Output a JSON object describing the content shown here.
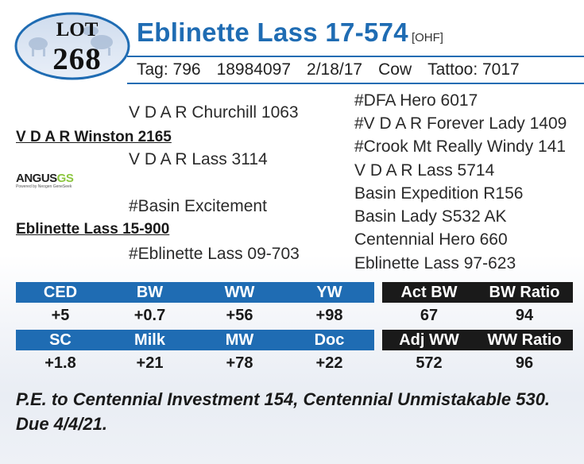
{
  "lot": {
    "label": "LOT",
    "number": "268"
  },
  "animal": {
    "name": "Eblinette Lass 17-574",
    "code": "[OHF]"
  },
  "info": {
    "tag": "Tag: 796",
    "reg": "18984097",
    "dob": "2/18/17",
    "sex": "Cow",
    "tattoo": "Tattoo: 7017"
  },
  "pedigree": {
    "sire": "V D A R Winston 2165",
    "sire_sire": "V D A R Churchill 1063",
    "sire_dam": "V D A R Lass 3114",
    "sire_sire_sire": "#DFA Hero 6017",
    "sire_sire_dam": "#V D A R Forever Lady 1409",
    "sire_dam_sire": "#Crook Mt Really Windy 141",
    "sire_dam_dam": "V D A R Lass 5714",
    "dam": "Eblinette Lass 15-900",
    "dam_sire": "#Basin Excitement",
    "dam_dam": "#Eblinette Lass 09-703",
    "dam_sire_sire": "Basin Expedition R156",
    "dam_sire_dam": "Basin Lady S532 AK",
    "dam_dam_sire": "Centennial Hero 660",
    "dam_dam_dam": "Eblinette Lass 97-623"
  },
  "logo": {
    "angus": "ANGUS",
    "gs": "GS",
    "powered": "Powered by Neogen GeneSeek"
  },
  "epd_row1": {
    "headers": [
      "CED",
      "BW",
      "WW",
      "YW"
    ],
    "values": [
      "+5",
      "+0.7",
      "+56",
      "+98"
    ]
  },
  "epd_row2": {
    "headers": [
      "SC",
      "Milk",
      "MW",
      "Doc"
    ],
    "values": [
      "+1.8",
      "+21",
      "+78",
      "+22"
    ]
  },
  "perf_row1": {
    "headers": [
      "Act BW",
      "BW Ratio"
    ],
    "values": [
      "67",
      "94"
    ]
  },
  "perf_row2": {
    "headers": [
      "Adj WW",
      "WW Ratio"
    ],
    "values": [
      "572",
      "96"
    ]
  },
  "note": "P.E. to Centennial Investment 154, Centennial Unmistakable 530. Due 4/4/21.",
  "colors": {
    "accent": "#1f6cb3",
    "dark": "#1a1a1a",
    "logo_green": "#8cc63f"
  }
}
